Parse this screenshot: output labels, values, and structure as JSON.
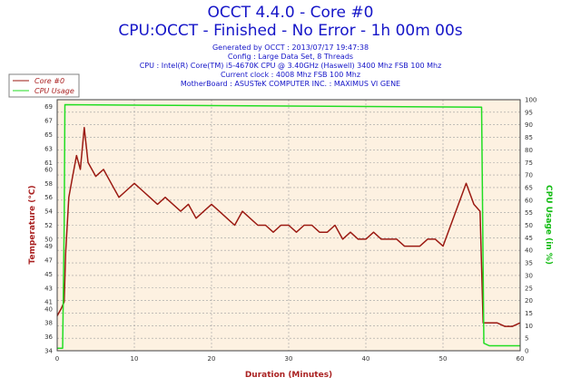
{
  "header": {
    "title": "OCCT 4.4.0 - Core #0",
    "subtitle": "CPU:OCCT - Finished - No Error - 1h 00m 00s",
    "info_lines": [
      "Generated by OCCT : 2013/07/17 19:47:38",
      "Config : Large Data Set, 8 Threads",
      "CPU : Intel(R) Core(TM) i5-4670K CPU @ 3.40GHz (Haswell) 3400 Mhz FSB 100 Mhz",
      "Current clock : 4008 Mhz FSB 100 Mhz",
      "MotherBoard : ASUSTeK COMPUTER INC. : MAXIMUS VI GENE"
    ]
  },
  "colors": {
    "temperature": "#9b1a12",
    "cpu_usage": "#22dd22",
    "plot_bg": "#fdf1e1",
    "grid": "#a0a0a0",
    "title": "#1515c8",
    "axis_title_left": "#aa2222",
    "axis_title_right": "#11bb11"
  },
  "chart_data": {
    "type": "line",
    "xlabel": "Duration (Minutes)",
    "ylabel_left": "Temperature (°C)",
    "ylabel_right": "CPU Usage (in %)",
    "xlim": [
      0,
      60
    ],
    "ylim_left": [
      34,
      70
    ],
    "ylim_right": [
      0,
      100
    ],
    "x_ticks": [
      0,
      10,
      20,
      30,
      40,
      50,
      60
    ],
    "y_ticks_left": [
      34,
      36,
      38,
      40,
      41,
      43,
      45,
      47,
      49,
      50,
      52,
      54,
      56,
      58,
      60,
      61,
      63,
      65,
      67,
      69
    ],
    "y_ticks_right": [
      0,
      5,
      10,
      15,
      20,
      25,
      30,
      35,
      40,
      45,
      50,
      55,
      60,
      65,
      70,
      75,
      80,
      85,
      90,
      95,
      100
    ],
    "grid": true,
    "legend_placement": "top-left",
    "series": [
      {
        "name": "Core #0",
        "axis": "left",
        "x": [
          0,
          0.5,
          0.9,
          1.1,
          1.5,
          2,
          2.5,
          3,
          3.5,
          4,
          5,
          6,
          7,
          8,
          9,
          10,
          11,
          12,
          13,
          14,
          15,
          16,
          17,
          18,
          19,
          20,
          21,
          22,
          23,
          24,
          25,
          26,
          27,
          28,
          29,
          30,
          31,
          32,
          33,
          34,
          35,
          36,
          37,
          38,
          39,
          40,
          41,
          42,
          43,
          44,
          45,
          46,
          47,
          48,
          49,
          50,
          51,
          52,
          53,
          54,
          54.8,
          55.2,
          56,
          57,
          58,
          59,
          60
        ],
        "y": [
          39,
          40,
          41,
          48,
          56,
          59,
          62,
          60,
          66,
          61,
          59,
          60,
          58,
          56,
          57,
          58,
          57,
          56,
          55,
          56,
          55,
          54,
          55,
          53,
          54,
          55,
          54,
          53,
          52,
          54,
          53,
          52,
          52,
          51,
          52,
          52,
          51,
          52,
          52,
          51,
          51,
          52,
          50,
          51,
          50,
          50,
          51,
          50,
          50,
          50,
          49,
          49,
          49,
          50,
          50,
          49,
          52,
          55,
          58,
          55,
          54,
          38,
          38,
          38,
          37.5,
          37.5,
          38
        ]
      },
      {
        "name": "CPU Usage",
        "axis": "right",
        "x": [
          0,
          0.7,
          0.9,
          1,
          55,
          55.3,
          56,
          60
        ],
        "y": [
          1,
          1,
          50,
          98,
          97,
          3,
          2,
          2
        ]
      }
    ]
  }
}
